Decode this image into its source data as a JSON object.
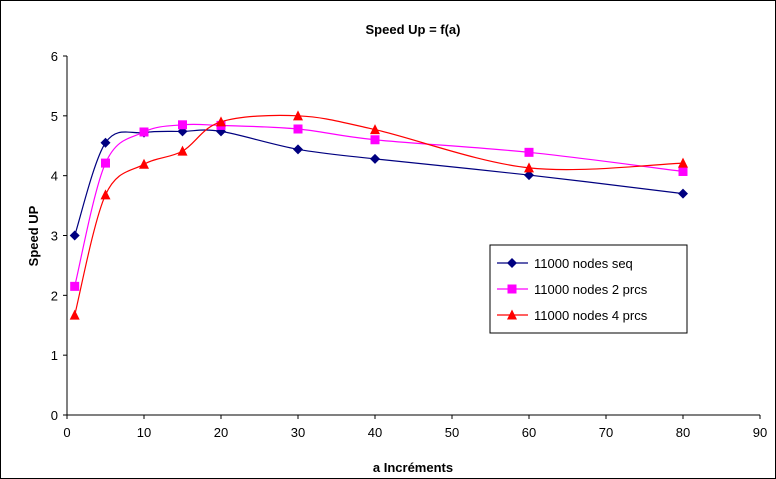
{
  "chart_data": {
    "type": "line",
    "title": "Speed Up = f(a)",
    "xlabel": "a  Incréments",
    "ylabel": "Speed UP",
    "xlim": [
      0,
      90
    ],
    "ylim": [
      0,
      6
    ],
    "xticks": [
      0,
      10,
      20,
      30,
      40,
      50,
      60,
      70,
      80,
      90
    ],
    "yticks": [
      0,
      1,
      2,
      3,
      4,
      5,
      6
    ],
    "grid": false,
    "legend_position": "right",
    "smoothed": true,
    "series": [
      {
        "name": "11000 nodes seq",
        "color": "#000080",
        "marker": "diamond",
        "x": [
          1,
          5,
          10,
          15,
          20,
          30,
          40,
          60,
          80
        ],
        "y": [
          3.0,
          4.55,
          4.72,
          4.74,
          4.74,
          4.44,
          4.28,
          4.01,
          3.7
        ]
      },
      {
        "name": "11000 nodes 2 prcs",
        "color": "#FF00FF",
        "marker": "square",
        "x": [
          1,
          5,
          10,
          15,
          20,
          30,
          40,
          60,
          80
        ],
        "y": [
          2.15,
          4.21,
          4.73,
          4.85,
          4.84,
          4.78,
          4.6,
          4.39,
          4.07
        ]
      },
      {
        "name": "11000 nodes 4 prcs",
        "color": "#FF0000",
        "marker": "triangle",
        "x": [
          1,
          5,
          10,
          15,
          20,
          30,
          40,
          60,
          80
        ],
        "y": [
          1.67,
          3.68,
          4.19,
          4.41,
          4.9,
          5.0,
          4.77,
          4.13,
          4.21
        ]
      }
    ]
  }
}
